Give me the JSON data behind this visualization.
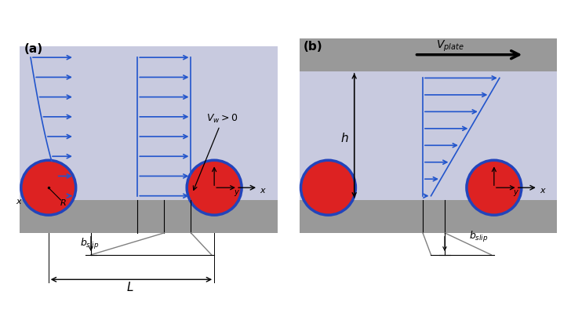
{
  "fig_width": 7.28,
  "fig_height": 4.14,
  "dpi": 100,
  "fluid_color": "#c8cadf",
  "plate_color": "#999999",
  "ball_red": "#dd2222",
  "ball_outline": "#2244bb",
  "arrow_color": "#2255cc",
  "text_color": "#000000"
}
